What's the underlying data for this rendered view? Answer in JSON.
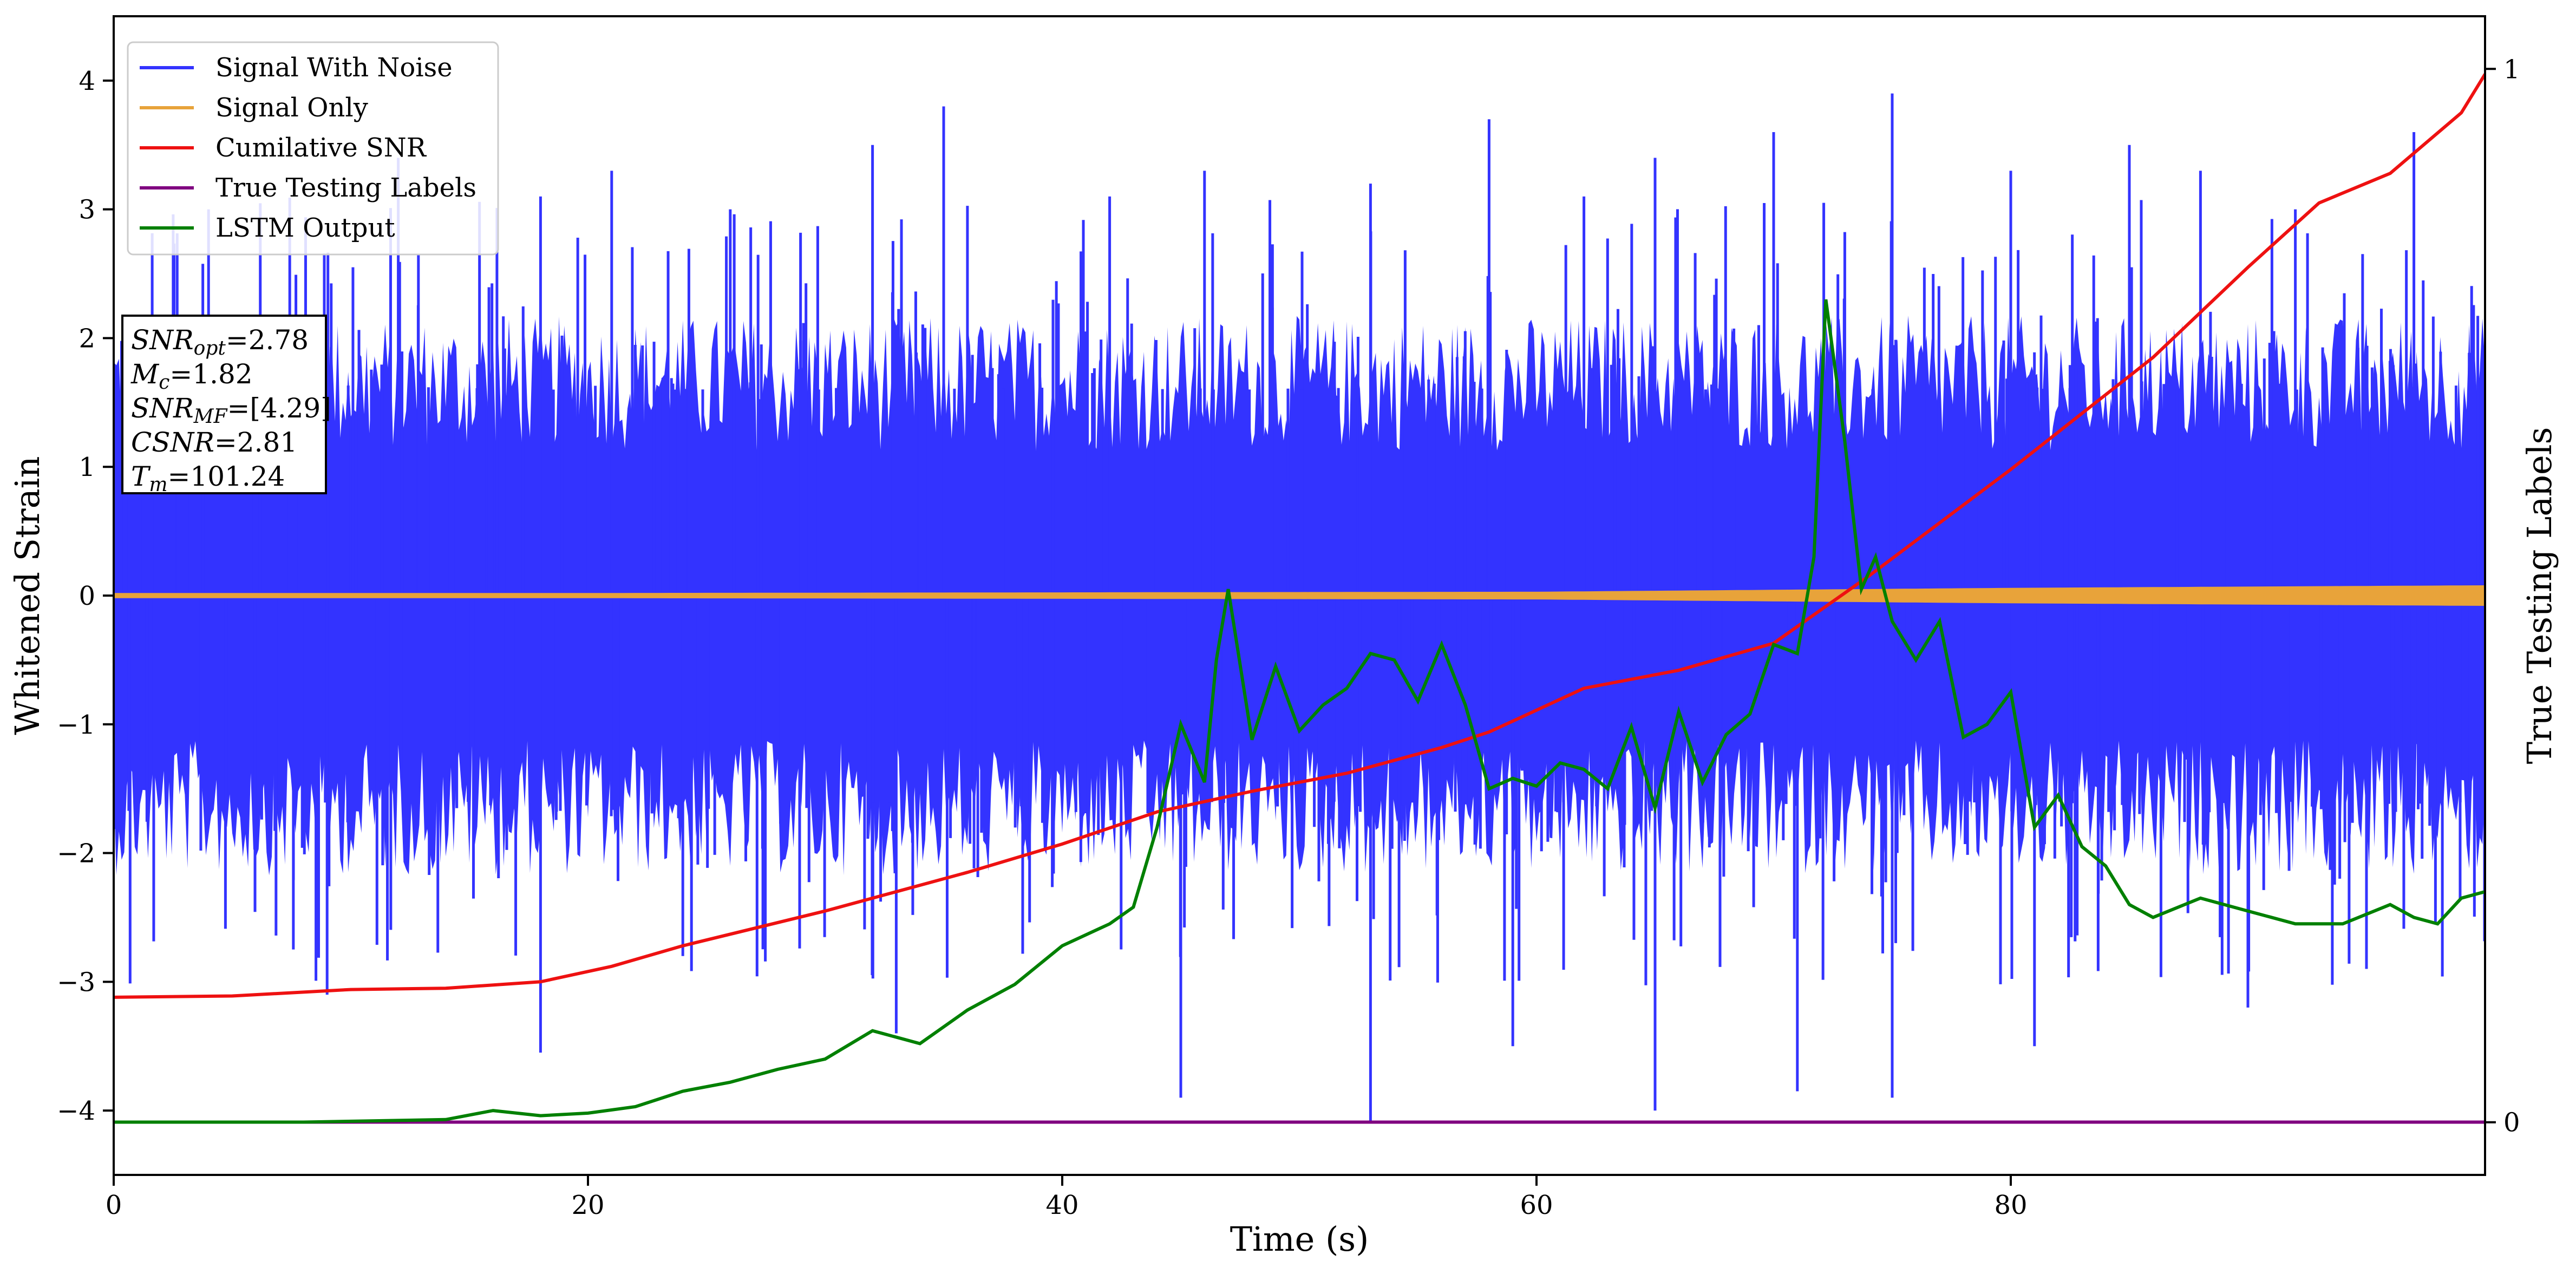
{
  "chart_data": {
    "type": "line",
    "xlabel": "Time (s)",
    "ylabel": "Whitened Strain",
    "y2label": "True Testing Labels",
    "xlim": [
      0,
      100
    ],
    "ylim": [
      -4.5,
      4.5
    ],
    "y2lim": [
      -0.05,
      1.05
    ],
    "xticks": [
      0,
      20,
      40,
      60,
      80
    ],
    "yticks": [
      -4,
      -3,
      -2,
      -1,
      0,
      1,
      2,
      3,
      4
    ],
    "y2ticks": [
      0,
      1
    ],
    "grid": false,
    "legend_position": "top-left",
    "colors": {
      "signal_with_noise": "#3333ff",
      "signal_only": "#e8a33a",
      "cumulative_snr": "#ee1111",
      "true_labels": "#800080",
      "lstm_output": "#008000"
    },
    "legend": [
      {
        "label": "Signal With Noise",
        "color": "#3333ff"
      },
      {
        "label": "Signal Only",
        "color": "#e8a33a"
      },
      {
        "label": "Cumilative SNR",
        "color": "#ee1111"
      },
      {
        "label": "True Testing Labels",
        "color": "#800080"
      },
      {
        "label": "LSTM Output",
        "color": "#008000"
      }
    ],
    "info_box": [
      {
        "main": "SNR",
        "sub": "opt",
        "value": "=2.78"
      },
      {
        "main": "M",
        "sub": "c",
        "value": "=1.82"
      },
      {
        "main": "SNR",
        "sub": "MF",
        "value": "=[4.29]"
      },
      {
        "main": "CSNR",
        "sub": "",
        "value": "=2.81"
      },
      {
        "main": "T",
        "sub": "m",
        "value": "=101.24"
      }
    ],
    "series": [
      {
        "name": "Cumilative SNR",
        "x": [
          0,
          5,
          10,
          14,
          18,
          21,
          24,
          30,
          36,
          40,
          44,
          48,
          52,
          56,
          58,
          62,
          64,
          66,
          70,
          74,
          80,
          86,
          90,
          93,
          96,
          99,
          100
        ],
        "y": [
          -3.12,
          -3.11,
          -3.06,
          -3.05,
          -3.0,
          -2.88,
          -2.72,
          -2.45,
          -2.15,
          -1.93,
          -1.68,
          -1.52,
          -1.38,
          -1.18,
          -1.06,
          -0.72,
          -0.65,
          -0.58,
          -0.37,
          0.15,
          0.98,
          1.85,
          2.55,
          3.05,
          3.28,
          3.75,
          4.05
        ]
      },
      {
        "name": "LSTM Output",
        "x": [
          0,
          8,
          14,
          16,
          18,
          20,
          22,
          24,
          26,
          28,
          30,
          32,
          34,
          36,
          38,
          40,
          42,
          43,
          44,
          45,
          46,
          46.5,
          47,
          48,
          49,
          50,
          51,
          52,
          53,
          54,
          55,
          56,
          57,
          58,
          59,
          60,
          61,
          62,
          63,
          64,
          65,
          66,
          67,
          68,
          69,
          70,
          71,
          71.7,
          72.2,
          73,
          73.7,
          74.3,
          75,
          76,
          77,
          78,
          79,
          80,
          81,
          82,
          83,
          84,
          85,
          86,
          88,
          90,
          92,
          94,
          96,
          97,
          98,
          99,
          100
        ],
        "y": [
          -4.09,
          -4.09,
          -4.07,
          -4.0,
          -4.04,
          -4.02,
          -3.97,
          -3.85,
          -3.78,
          -3.68,
          -3.6,
          -3.38,
          -3.48,
          -3.22,
          -3.02,
          -2.72,
          -2.55,
          -2.42,
          -1.8,
          -1.0,
          -1.45,
          -0.5,
          0.05,
          -1.12,
          -0.55,
          -1.05,
          -0.85,
          -0.72,
          -0.45,
          -0.5,
          -0.82,
          -0.38,
          -0.85,
          -1.5,
          -1.42,
          -1.48,
          -1.3,
          -1.35,
          -1.5,
          -1.02,
          -1.65,
          -0.9,
          -1.45,
          -1.08,
          -0.92,
          -0.38,
          -0.45,
          0.3,
          2.3,
          1.2,
          0.05,
          0.3,
          -0.2,
          -0.5,
          -0.2,
          -1.1,
          -1.0,
          -0.75,
          -1.8,
          -1.55,
          -1.95,
          -2.1,
          -2.4,
          -2.5,
          -2.35,
          -2.45,
          -2.55,
          -2.55,
          -2.4,
          -2.5,
          -2.55,
          -2.35,
          -2.3
        ]
      },
      {
        "name": "True Testing Labels",
        "x": [
          0,
          100
        ],
        "y": [
          -4.09,
          -4.09
        ]
      }
    ],
    "noise_envelope": {
      "name": "Signal With Noise",
      "typical_range": [
        -1.5,
        1.5
      ],
      "peaks_x": [
        4,
        12,
        18,
        21,
        26,
        32,
        35,
        42,
        46,
        53,
        58,
        62,
        65,
        70,
        75,
        80,
        85,
        88,
        92,
        97
      ],
      "peaks_y": [
        3.0,
        3.4,
        3.1,
        3.3,
        3.0,
        3.5,
        3.8,
        3.1,
        3.3,
        3.2,
        3.7,
        3.1,
        3.4,
        3.6,
        3.9,
        3.3,
        3.5,
        3.3,
        3.0,
        3.6
      ],
      "troughs_x": [
        9,
        18,
        24,
        33,
        45,
        53,
        59,
        65,
        71,
        75,
        81,
        90,
        95
      ],
      "troughs_y": [
        -3.1,
        -3.55,
        -2.8,
        -3.4,
        -3.9,
        -4.1,
        -3.5,
        -4.0,
        -3.85,
        -3.9,
        -3.5,
        -3.2,
        -2.9
      ]
    },
    "signal_only_envelope": {
      "name": "Signal Only",
      "x": [
        0,
        20,
        40,
        60,
        70,
        80,
        90,
        100
      ],
      "amplitude": [
        0.02,
        0.02,
        0.025,
        0.03,
        0.045,
        0.06,
        0.07,
        0.08
      ]
    }
  }
}
